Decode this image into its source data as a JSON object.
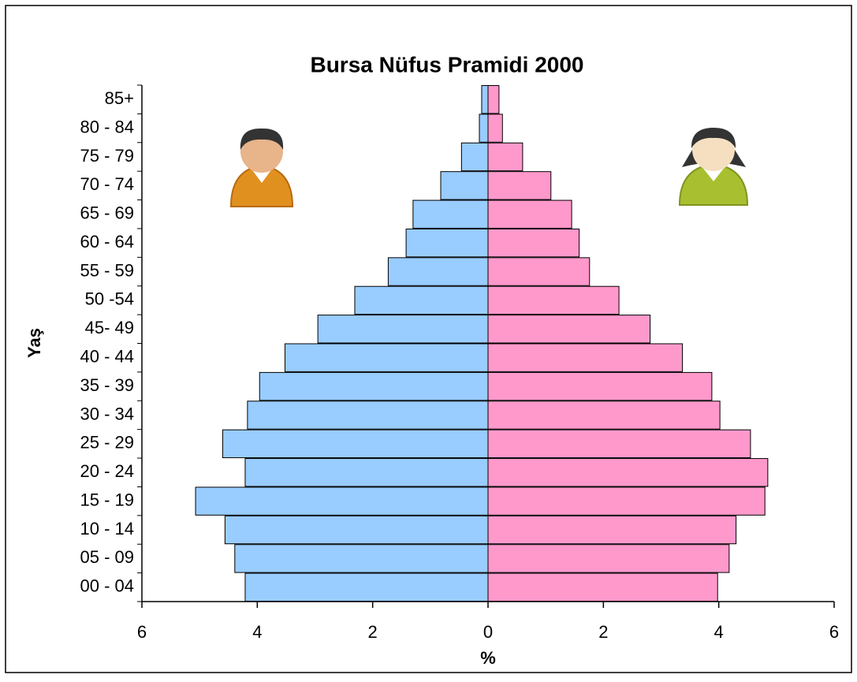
{
  "chart_data": {
    "type": "pyramid",
    "title": "Bursa Nüfus Pramidi 2000",
    "x_label": "%",
    "y_label": "Yaş",
    "categories": [
      "00 - 04",
      "05 - 09",
      "10 - 14",
      "15 - 19",
      "20 - 24",
      "25 - 29",
      "30 - 34",
      "35 - 39",
      "40 - 44",
      "45- 49",
      "50 -54",
      "55 - 59",
      "60 - 64",
      "65 - 69",
      "70 - 74",
      "75 - 79",
      "80 - 84",
      "85+"
    ],
    "series": [
      {
        "color": "#99ccff",
        "values": [
          -4.21,
          -4.39,
          -4.56,
          -5.07,
          -4.21,
          -4.6,
          -4.17,
          -3.96,
          -3.52,
          -2.95,
          -2.31,
          -1.73,
          -1.42,
          -1.3,
          -0.82,
          -0.46,
          -0.15,
          -0.11
        ]
      },
      {
        "color": "#ff99cc",
        "values": [
          3.98,
          4.18,
          4.3,
          4.8,
          4.85,
          4.55,
          4.02,
          3.88,
          3.37,
          2.81,
          2.27,
          1.76,
          1.58,
          1.45,
          1.09,
          0.6,
          0.25,
          0.19
        ]
      }
    ],
    "xlim": [
      -6,
      6
    ],
    "xticks": [
      {
        "value": -6,
        "label": "6"
      },
      {
        "value": -4,
        "label": "4"
      },
      {
        "value": -2,
        "label": "2"
      },
      0,
      2,
      4,
      6
    ]
  }
}
